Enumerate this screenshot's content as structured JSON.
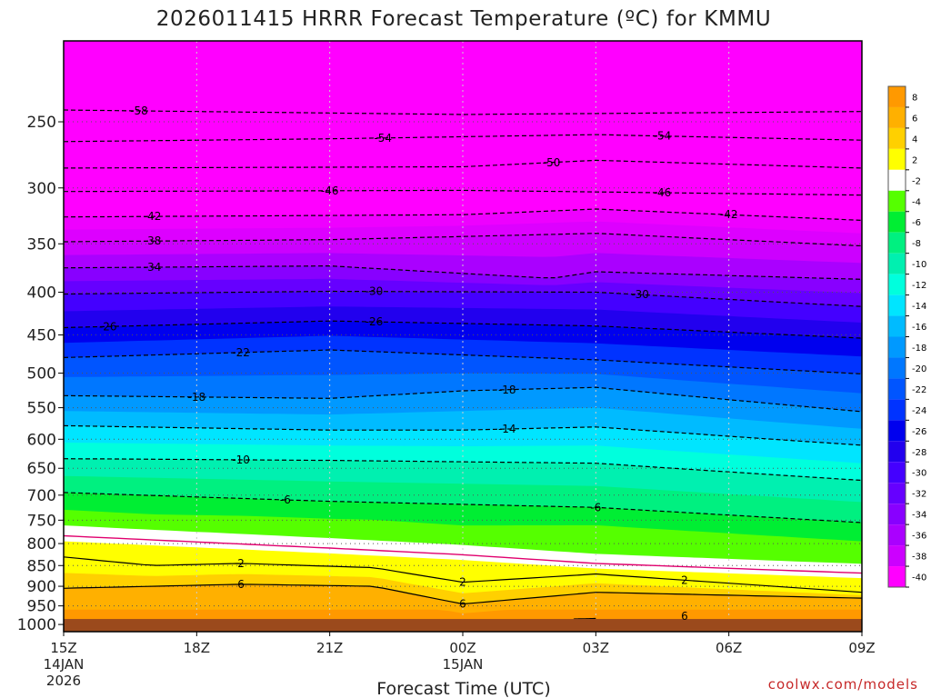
{
  "chart_data": {
    "type": "heatmap",
    "title": "2026011415 HRRR Forecast Temperature (ºC) for KMMU",
    "xlabel": "Forecast Time (UTC)",
    "ylabel": "",
    "x_ticks": [
      {
        "label": "15Z",
        "date": "14JAN",
        "year": "2026",
        "hours": 0
      },
      {
        "label": "18Z",
        "hours": 3
      },
      {
        "label": "21Z",
        "hours": 6
      },
      {
        "label": "00Z",
        "date": "15JAN",
        "hours": 9
      },
      {
        "label": "03Z",
        "hours": 12
      },
      {
        "label": "06Z",
        "hours": 15
      },
      {
        "label": "09Z",
        "hours": 18
      }
    ],
    "x_range_hours": [
      0,
      18
    ],
    "y_axis": "pressure (hPa), log scale, decreasing upward",
    "y_ticks": [
      250,
      300,
      350,
      400,
      450,
      500,
      550,
      600,
      650,
      700,
      750,
      800,
      850,
      900,
      950,
      1000
    ],
    "y_range": [
      1020,
      200
    ],
    "ground_below_hPa": 985,
    "colorbar_labels": [
      "8",
      "6",
      "4",
      "2",
      "-2",
      "-4",
      "-6",
      "-8",
      "-10",
      "-12",
      "-14",
      "-16",
      "-18",
      "-20",
      "-22",
      "-24",
      "-26",
      "-28",
      "-30",
      "-32",
      "-34",
      "-36",
      "-38",
      "-40"
    ],
    "colorbar_fills": [
      "#ff9900",
      "#ffb000",
      "#ffd000",
      "#ffff00",
      "#ffffff",
      "#55ff00",
      "#00ee33",
      "#00f080",
      "#00f0b0",
      "#00ffdd",
      "#00e5ff",
      "#00bbff",
      "#0099ff",
      "#0077ff",
      "#0055ff",
      "#0033ff",
      "#0000ee",
      "#2200ee",
      "#4400ff",
      "#6600ff",
      "#8800ff",
      "#aa00ff",
      "#cc00ff",
      "#ff00ff"
    ],
    "freezing_line_color": "#e0006e",
    "contour_interval_C": 4,
    "series": [
      {
        "value": -58,
        "label": "-58",
        "hours": [
          0,
          9,
          18
        ],
        "hPa": [
          242,
          245,
          243
        ],
        "label_at_hours": 1.7
      },
      {
        "value": -54,
        "label": "-54",
        "hours": [
          0,
          6,
          12,
          18
        ],
        "hPa": [
          264,
          262,
          259,
          263
        ],
        "label_at_hours": [
          7.2,
          13.5
        ]
      },
      {
        "value": -50,
        "label": "-50",
        "hours": [
          0,
          9,
          12,
          18
        ],
        "hPa": [
          284,
          283,
          278,
          284
        ],
        "label_at_hours": 11
      },
      {
        "value": -46,
        "label": "-46",
        "hours": [
          0,
          9,
          18
        ],
        "hPa": [
          303,
          302,
          306
        ],
        "label_at_hours": [
          6,
          13.5
        ]
      },
      {
        "value": -42,
        "label": "-42",
        "hours": [
          0,
          9,
          12,
          18
        ],
        "hPa": [
          325,
          323,
          318,
          328
        ],
        "label_at_hours": [
          2,
          15
        ]
      },
      {
        "value": -38,
        "label": "-38",
        "hours": [
          0,
          6,
          12,
          18
        ],
        "hPa": [
          348,
          346,
          340,
          352
        ],
        "label_at_hours": 2
      },
      {
        "value": -34,
        "label": "-34",
        "hours": [
          0,
          6,
          11,
          12,
          18
        ],
        "hPa": [
          374,
          372,
          385,
          378,
          386
        ],
        "label_at_hours": 2
      },
      {
        "value": -30,
        "label": "-30",
        "hours": [
          0,
          6,
          12,
          18
        ],
        "hPa": [
          402,
          399,
          400,
          416
        ],
        "label_at_hours": [
          7,
          13
        ]
      },
      {
        "value": -26,
        "label": "-26",
        "hours": [
          0,
          6,
          12,
          18
        ],
        "hPa": [
          441,
          433,
          439,
          454
        ],
        "label_at_hours": [
          1,
          7
        ]
      },
      {
        "value": -22,
        "label": "-22",
        "hours": [
          0,
          6,
          12,
          18
        ],
        "hPa": [
          479,
          469,
          482,
          501
        ],
        "label_at_hours": 4
      },
      {
        "value": -18,
        "label": "-18",
        "hours": [
          0,
          6,
          9,
          12,
          18
        ],
        "hPa": [
          532,
          536,
          525,
          520,
          556
        ],
        "label_at_hours": [
          3,
          10
        ]
      },
      {
        "value": -14,
        "label": "-14",
        "hours": [
          0,
          6,
          9,
          12,
          18
        ],
        "hPa": [
          578,
          585,
          585,
          580,
          610
        ],
        "label_at_hours": 10
      },
      {
        "value": -10,
        "label": "-10",
        "hours": [
          0,
          6,
          12,
          18
        ],
        "hPa": [
          633,
          636,
          641,
          672
        ],
        "label_at_hours": 4
      },
      {
        "value": -6,
        "label": "-6",
        "hours": [
          0,
          6,
          12,
          18
        ],
        "hPa": [
          695,
          712,
          724,
          755
        ],
        "label_at_hours": [
          5,
          12
        ]
      },
      {
        "value": 2,
        "label": "2",
        "hours": [
          0,
          2,
          4,
          7,
          9,
          12,
          18
        ],
        "hPa": [
          830,
          850,
          845,
          855,
          890,
          870,
          915
        ],
        "label_at_hours": [
          4,
          9,
          14
        ]
      },
      {
        "value": 6,
        "label": "6",
        "hours": [
          0,
          4,
          7,
          9,
          12,
          18
        ],
        "hPa": [
          905,
          895,
          900,
          945,
          915,
          930
        ],
        "label_at_hours": [
          4,
          9
        ]
      },
      {
        "value": 6,
        "label": "6",
        "hours": [
          11.5,
          15,
          15.5,
          12
        ],
        "hPa": [
          985,
          975,
          982,
          985
        ],
        "label_at_hours": 14
      }
    ],
    "freezing_line": {
      "value": 0,
      "hours": [
        0,
        6,
        9,
        12,
        18
      ],
      "hPa": [
        783,
        810,
        825,
        845,
        868
      ]
    }
  },
  "credit": "coolwx.com/models"
}
